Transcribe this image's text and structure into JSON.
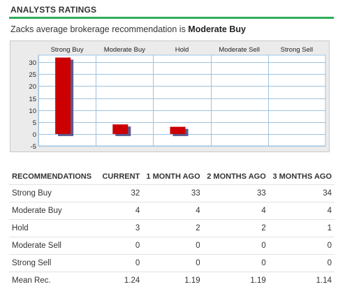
{
  "header": {
    "title": "ANALYSTS RATINGS"
  },
  "summary": {
    "prefix": "Zacks average brokerage recommendation is ",
    "value": "Moderate Buy"
  },
  "colors": {
    "accent_rule": "#2eae5b",
    "bar": "#cc0000",
    "bar_shadow": "#5a5a8c",
    "grid": "#9ec3e0"
  },
  "chart_data": {
    "type": "bar",
    "categories": [
      "Strong Buy",
      "Moderate Buy",
      "Hold",
      "Moderate Sell",
      "Strong Sell"
    ],
    "values": [
      32,
      4,
      3,
      0,
      0
    ],
    "yticks": [
      30,
      25,
      20,
      15,
      10,
      5,
      0,
      -5
    ],
    "ylim": [
      -5,
      33
    ],
    "grid": true
  },
  "table": {
    "columns": [
      "RECOMMENDATIONS",
      "CURRENT",
      "1 MONTH AGO",
      "2 MONTHS AGO",
      "3 MONTHS AGO"
    ],
    "rows": [
      [
        "Strong Buy",
        "32",
        "33",
        "33",
        "34"
      ],
      [
        "Moderate Buy",
        "4",
        "4",
        "4",
        "4"
      ],
      [
        "Hold",
        "3",
        "2",
        "2",
        "1"
      ],
      [
        "Moderate Sell",
        "0",
        "0",
        "0",
        "0"
      ],
      [
        "Strong Sell",
        "0",
        "0",
        "0",
        "0"
      ],
      [
        "Mean Rec.",
        "1.24",
        "1.19",
        "1.19",
        "1.14"
      ]
    ]
  }
}
